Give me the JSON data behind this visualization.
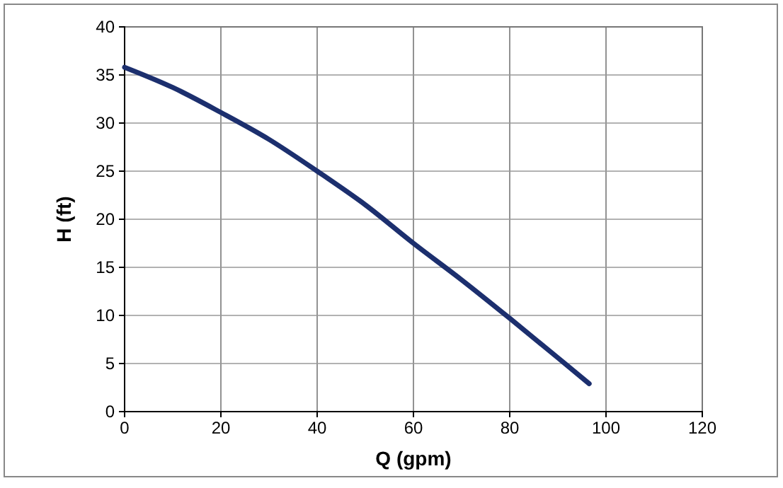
{
  "chart_data": {
    "type": "line",
    "xlabel": "Q (gpm)",
    "ylabel": "H (ft)",
    "xlim": [
      0,
      120
    ],
    "xticks": [
      0,
      20,
      40,
      60,
      80,
      100,
      120
    ],
    "ylim": [
      0,
      40
    ],
    "yticks": [
      0,
      5,
      10,
      15,
      20,
      25,
      30,
      35,
      40
    ],
    "grid": true,
    "marker": "none",
    "line_style": "solid",
    "series": [
      {
        "color": "#1c2f6e",
        "x": [
          0,
          10,
          20,
          30,
          40,
          50,
          60,
          70,
          80,
          90,
          96.5
        ],
        "values": [
          35.8,
          33.7,
          31.1,
          28.3,
          25,
          21.5,
          17.5,
          13.7,
          9.7,
          5.6,
          2.9
        ]
      }
    ]
  }
}
